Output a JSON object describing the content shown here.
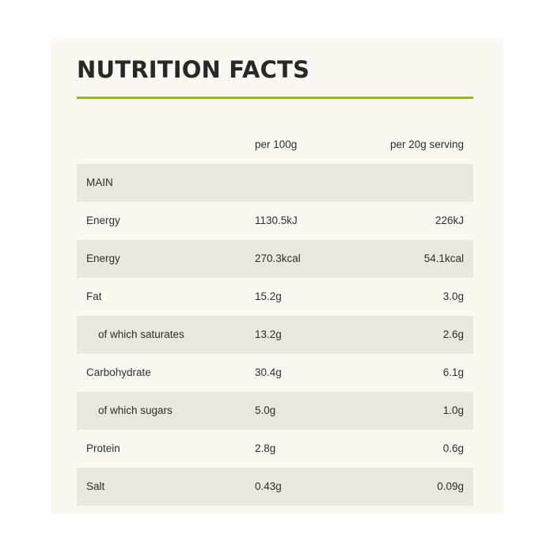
{
  "title": "NUTRITION FACTS",
  "colors": {
    "panel_bg": "#faf8f1",
    "row_shade": "#ebe7df",
    "accent_rule": "#95b33b"
  },
  "table": {
    "headers": {
      "per_100g": "per 100g",
      "per_serving": "per 20g serving"
    },
    "section": "MAIN",
    "rows": [
      {
        "label": "Energy",
        "per_100g": "1130.5kJ",
        "per_serving": "226kJ"
      },
      {
        "label": "Energy",
        "per_100g": "270.3kcal",
        "per_serving": "54.1kcal"
      },
      {
        "label": "Fat",
        "per_100g": "15.2g",
        "per_serving": "3.0g"
      },
      {
        "label": "of which saturates",
        "per_100g": "13.2g",
        "per_serving": "2.6g"
      },
      {
        "label": "Carbohydrate",
        "per_100g": "30.4g",
        "per_serving": "6.1g"
      },
      {
        "label": "of which sugars",
        "per_100g": "5.0g",
        "per_serving": "1.0g"
      },
      {
        "label": "Protein",
        "per_100g": "2.8g",
        "per_serving": "0.6g"
      },
      {
        "label": "Salt",
        "per_100g": "0.43g",
        "per_serving": "0.09g"
      }
    ]
  }
}
